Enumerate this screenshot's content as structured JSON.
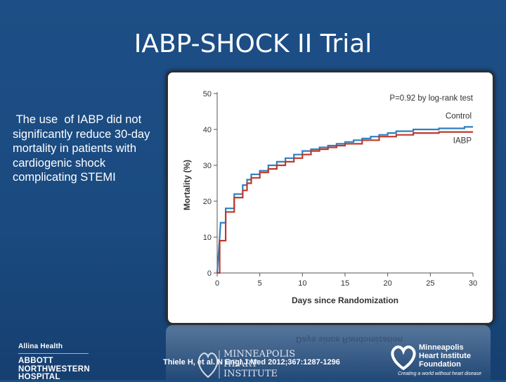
{
  "slide": {
    "title": "IABP-SHOCK II Trial",
    "bullet": " The use  of IABP did not significantly reduce 30-day mortality in patients with cardiogenic shock complicating STEMI",
    "citation": "Thiele H, et al. N Engl J Med 2012;367:1287-1296"
  },
  "footer": {
    "allina": "Allina Health",
    "abbott_lines": [
      "ABBOTT",
      "NORTHWESTERN",
      "HOSPITAL"
    ],
    "mpls_name_lines": [
      "MINNEAPOLIS",
      "HEART",
      "INSTITUTE"
    ],
    "foundation_lines": [
      "Minneapolis",
      "Heart Institute",
      "Foundation"
    ],
    "foundation_tagline": "Creating a world without heart disease"
  },
  "chart_data": {
    "type": "line",
    "xlabel": "Days since Randomization",
    "ylabel": "Mortality (%)",
    "xlim": [
      0,
      30
    ],
    "ylim": [
      0,
      50
    ],
    "xticks": [
      0,
      5,
      10,
      15,
      20,
      25,
      30
    ],
    "yticks": [
      0,
      10,
      20,
      30,
      40,
      50
    ],
    "annotation": "P=0.92 by log-rank test",
    "step": true,
    "series": [
      {
        "name": "Control",
        "color": "#2f7fbf",
        "points": [
          [
            0,
            0
          ],
          [
            0.3,
            10
          ],
          [
            0.4,
            14
          ],
          [
            1,
            14
          ],
          [
            1,
            18
          ],
          [
            2,
            18
          ],
          [
            2,
            22
          ],
          [
            3,
            22
          ],
          [
            3,
            24.5
          ],
          [
            3.5,
            24.5
          ],
          [
            3.5,
            26
          ],
          [
            4,
            26
          ],
          [
            4,
            27.5
          ],
          [
            5,
            27.5
          ],
          [
            5,
            28.5
          ],
          [
            6,
            28.5
          ],
          [
            6,
            30
          ],
          [
            7,
            30
          ],
          [
            7,
            31
          ],
          [
            8,
            31
          ],
          [
            8,
            32
          ],
          [
            9,
            32
          ],
          [
            9,
            33
          ],
          [
            10,
            33
          ],
          [
            10,
            34
          ],
          [
            11,
            34
          ],
          [
            11,
            34.5
          ],
          [
            12,
            34.5
          ],
          [
            12,
            35
          ],
          [
            13,
            35
          ],
          [
            13,
            35.5
          ],
          [
            14,
            35.5
          ],
          [
            14,
            36
          ],
          [
            15,
            36
          ],
          [
            15,
            36.5
          ],
          [
            16,
            36.5
          ],
          [
            16,
            37
          ],
          [
            17,
            37
          ],
          [
            17,
            37.5
          ],
          [
            18,
            37.5
          ],
          [
            18,
            38
          ],
          [
            19,
            38
          ],
          [
            19,
            38.5
          ],
          [
            20,
            38.5
          ],
          [
            20,
            39
          ],
          [
            21,
            39
          ],
          [
            21,
            39.5
          ],
          [
            23,
            39.5
          ],
          [
            23,
            40
          ],
          [
            26,
            40
          ],
          [
            26,
            40.3
          ],
          [
            29,
            40.3
          ],
          [
            29,
            40.7
          ],
          [
            30,
            40.7
          ]
        ]
      },
      {
        "name": "IABP",
        "color": "#c0392b",
        "points": [
          [
            0,
            0
          ],
          [
            0.3,
            0
          ],
          [
            0.3,
            9
          ],
          [
            1,
            9
          ],
          [
            1,
            17
          ],
          [
            2,
            17
          ],
          [
            2,
            21
          ],
          [
            3,
            21
          ],
          [
            3,
            23
          ],
          [
            3.5,
            23
          ],
          [
            3.5,
            25
          ],
          [
            4,
            25
          ],
          [
            4,
            26.5
          ],
          [
            5,
            26.5
          ],
          [
            5,
            28
          ],
          [
            6,
            28
          ],
          [
            6,
            29
          ],
          [
            7,
            29
          ],
          [
            7,
            30
          ],
          [
            8,
            30
          ],
          [
            8,
            31
          ],
          [
            9,
            31
          ],
          [
            9,
            32
          ],
          [
            10,
            32
          ],
          [
            10,
            33
          ],
          [
            11,
            33
          ],
          [
            11,
            34
          ],
          [
            12,
            34
          ],
          [
            12,
            34.5
          ],
          [
            13,
            34.5
          ],
          [
            13,
            35
          ],
          [
            14,
            35
          ],
          [
            14,
            35.5
          ],
          [
            15,
            35.5
          ],
          [
            15,
            36
          ],
          [
            17,
            36
          ],
          [
            17,
            37
          ],
          [
            19,
            37
          ],
          [
            19,
            38
          ],
          [
            21,
            38
          ],
          [
            21,
            38.5
          ],
          [
            23,
            38.5
          ],
          [
            23,
            39
          ],
          [
            26,
            39
          ],
          [
            26,
            39.3
          ],
          [
            30,
            39.3
          ]
        ]
      }
    ]
  }
}
